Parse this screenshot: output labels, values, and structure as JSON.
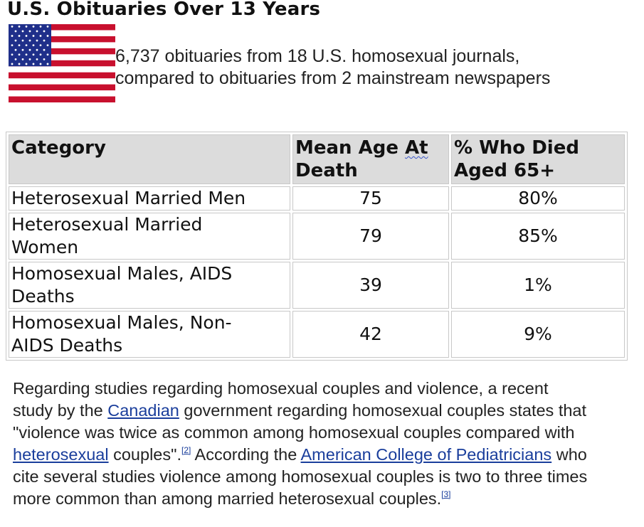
{
  "title": "U.S. Obituaries Over 13 Years",
  "flag": {
    "icon": "us-flag-icon",
    "colors": {
      "red": "#c8102e",
      "white": "#ffffff",
      "blue": "#1f2f8a"
    }
  },
  "intro": {
    "line1": "6,737 obituaries from 18 U.S. homosexual journals,",
    "line2": "compared to obituaries from 2 mainstream newspapers"
  },
  "table": {
    "headers": [
      {
        "line1": "Category",
        "line2": ""
      },
      {
        "line1_pre": "Mean Age ",
        "line1_wavy": "At",
        "line2": "Death"
      },
      {
        "line1": "% Who Died",
        "line2": "Aged 65+"
      }
    ],
    "rows": [
      {
        "category_line1": "Heterosexual Married Men",
        "category_line2": "",
        "mean_age": "75",
        "pct_65": "80%"
      },
      {
        "category_line1": "Heterosexual Married",
        "category_line2": "Women",
        "mean_age": "79",
        "pct_65": "85%"
      },
      {
        "category_line1": "Homosexual Males, AIDS",
        "category_line2": "Deaths",
        "mean_age": "39",
        "pct_65": "1%"
      },
      {
        "category_line1": "Homosexual Males, Non-",
        "category_line2": "AIDS Deaths",
        "mean_age": "42",
        "pct_65": "9%"
      }
    ]
  },
  "paragraph": {
    "l1": "Regarding studies regarding homosexual couples and violence, a recent",
    "l2_a": "study by the ",
    "l2_link": "Canadian",
    "l2_b": " government regarding homosexual couples states that",
    "l3": "\"violence was twice as common among homosexual couples compared with",
    "l4_link": "heterosexual",
    "l4_a": " couples\".",
    "ref2": "[2]",
    "l4_b": " According the ",
    "l4_link2": "American College of Pediatricians",
    "l4_c": " who",
    "l5": "cite several studies violence among homosexual couples is two to three times",
    "l6": "more common than among married heterosexual couples.",
    "ref3": "[3]",
    "link_color": "#1a3e9c"
  }
}
